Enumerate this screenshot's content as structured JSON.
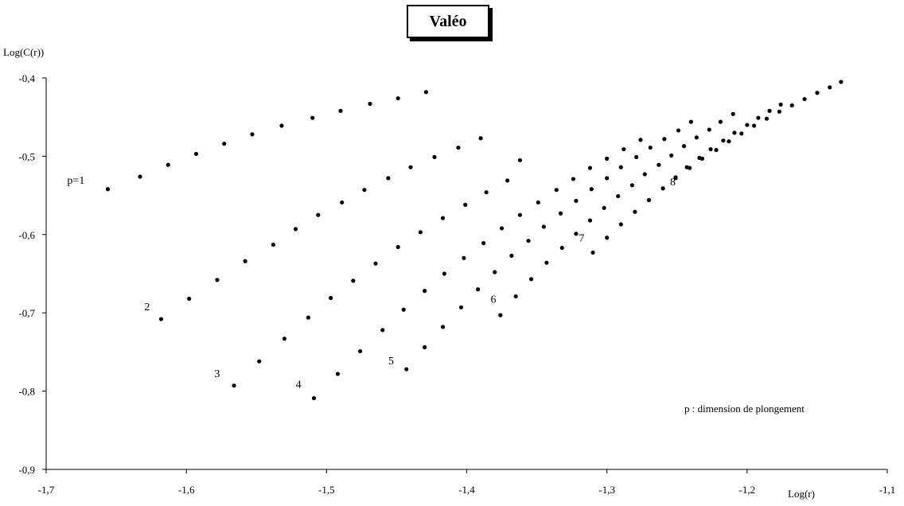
{
  "chart_data": {
    "type": "scatter",
    "title": "Valéo",
    "xlabel": "Log(r)",
    "ylabel": "Log(C(r))",
    "xlim": [
      -1.7,
      -1.1
    ],
    "ylim": [
      -0.9,
      -0.4
    ],
    "x_ticks": [
      "-1,7",
      "-1,6",
      "-1,5",
      "-1,4",
      "-1,3",
      "-1,2",
      "-1,1"
    ],
    "y_ticks": [
      "-0,4",
      "-0,5",
      "-0,6",
      "-0,7",
      "-0,8",
      "-0,9"
    ],
    "grid": false,
    "annotation": "p : dimension de plongement",
    "series": [
      {
        "name": "p=1",
        "x": [
          -1.656,
          -1.633,
          -1.613,
          -1.593,
          -1.573,
          -1.553,
          -1.532,
          -1.51,
          -1.49,
          -1.469,
          -1.449,
          -1.429
        ],
        "y": [
          -0.542,
          -0.526,
          -0.511,
          -0.497,
          -0.484,
          -0.472,
          -0.461,
          -0.451,
          -0.442,
          -0.433,
          -0.426,
          -0.418
        ]
      },
      {
        "name": "2",
        "x": [
          -1.618,
          -1.598,
          -1.578,
          -1.558,
          -1.538,
          -1.522,
          -1.506,
          -1.489,
          -1.473,
          -1.456,
          -1.44,
          -1.423,
          -1.406,
          -1.39
        ],
        "y": [
          -0.708,
          -0.682,
          -0.658,
          -0.634,
          -0.613,
          -0.593,
          -0.575,
          -0.559,
          -0.543,
          -0.528,
          -0.514,
          -0.501,
          -0.489,
          -0.477
        ]
      },
      {
        "name": "3",
        "x": [
          -1.566,
          -1.548,
          -1.53,
          -1.513,
          -1.497,
          -1.481,
          -1.465,
          -1.449,
          -1.433,
          -1.417,
          -1.401,
          -1.386,
          -1.371,
          -1.362
        ],
        "y": [
          -0.793,
          -0.762,
          -0.733,
          -0.706,
          -0.681,
          -0.659,
          -0.637,
          -0.616,
          -0.597,
          -0.579,
          -0.562,
          -0.546,
          -0.531,
          -0.505
        ]
      },
      {
        "name": "4",
        "x": [
          -1.509,
          -1.492,
          -1.476,
          -1.46,
          -1.445,
          -1.43,
          -1.416,
          -1.402,
          -1.388,
          -1.375,
          -1.362,
          -1.349,
          -1.336,
          -1.324,
          -1.312,
          -1.3,
          -1.288,
          -1.276
        ],
        "y": [
          -0.809,
          -0.778,
          -0.749,
          -0.722,
          -0.696,
          -0.672,
          -0.65,
          -0.63,
          -0.611,
          -0.592,
          -0.575,
          -0.559,
          -0.543,
          -0.529,
          -0.515,
          -0.503,
          -0.491,
          -0.479
        ]
      },
      {
        "name": "5",
        "x": [
          -1.443,
          -1.43,
          -1.417,
          -1.404,
          -1.392,
          -1.38,
          -1.368,
          -1.356,
          -1.345,
          -1.333,
          -1.322,
          -1.311,
          -1.3,
          -1.29,
          -1.279,
          -1.269,
          -1.259,
          -1.249,
          -1.24
        ],
        "y": [
          -0.772,
          -0.744,
          -0.718,
          -0.693,
          -0.67,
          -0.648,
          -0.627,
          -0.608,
          -0.59,
          -0.573,
          -0.557,
          -0.542,
          -0.528,
          -0.514,
          -0.501,
          -0.489,
          -0.478,
          -0.467,
          -0.456
        ]
      },
      {
        "name": "6",
        "x": [
          -1.376,
          -1.365,
          -1.354,
          -1.343,
          -1.332,
          -1.322,
          -1.312,
          -1.302,
          -1.292,
          -1.282,
          -1.273,
          -1.263,
          -1.254,
          -1.245,
          -1.236,
          -1.227,
          -1.219,
          -1.21
        ],
        "y": [
          -0.703,
          -0.679,
          -0.657,
          -0.636,
          -0.617,
          -0.599,
          -0.582,
          -0.566,
          -0.551,
          -0.537,
          -0.523,
          -0.511,
          -0.499,
          -0.487,
          -0.476,
          -0.466,
          -0.456,
          -0.446
        ]
      },
      {
        "name": "7",
        "x": [
          -1.31,
          -1.3,
          -1.29,
          -1.28,
          -1.27,
          -1.26,
          -1.251,
          -1.241,
          -1.232,
          -1.222,
          -1.213,
          -1.204,
          -1.195,
          -1.186,
          -1.177,
          -1.168,
          -1.159,
          -1.15,
          -1.141,
          -1.133
        ],
        "y": [
          -0.623,
          -0.604,
          -0.587,
          -0.571,
          -0.556,
          -0.541,
          -0.528,
          -0.515,
          -0.503,
          -0.492,
          -0.481,
          -0.471,
          -0.461,
          -0.452,
          -0.443,
          -0.435,
          -0.427,
          -0.419,
          -0.412,
          -0.405
        ]
      },
      {
        "name": "8",
        "x": [
          -1.251,
          -1.243,
          -1.234,
          -1.226,
          -1.217,
          -1.209,
          -1.2,
          -1.192,
          -1.184,
          -1.176
        ],
        "y": [
          -0.527,
          -0.514,
          -0.502,
          -0.491,
          -0.48,
          -0.47,
          -0.46,
          -0.451,
          -0.442,
          -0.434
        ]
      }
    ],
    "series_labels": [
      {
        "text": "p=1",
        "x": -1.685,
        "y": -0.535
      },
      {
        "text": "2",
        "x": -1.63,
        "y": -0.697
      },
      {
        "text": "3",
        "x": -1.58,
        "y": -0.782
      },
      {
        "text": "4",
        "x": -1.522,
        "y": -0.796
      },
      {
        "text": "5",
        "x": -1.456,
        "y": -0.766
      },
      {
        "text": "6",
        "x": -1.383,
        "y": -0.687
      },
      {
        "text": "7",
        "x": -1.32,
        "y": -0.609
      },
      {
        "text": "8",
        "x": -1.255,
        "y": -0.537
      }
    ]
  }
}
